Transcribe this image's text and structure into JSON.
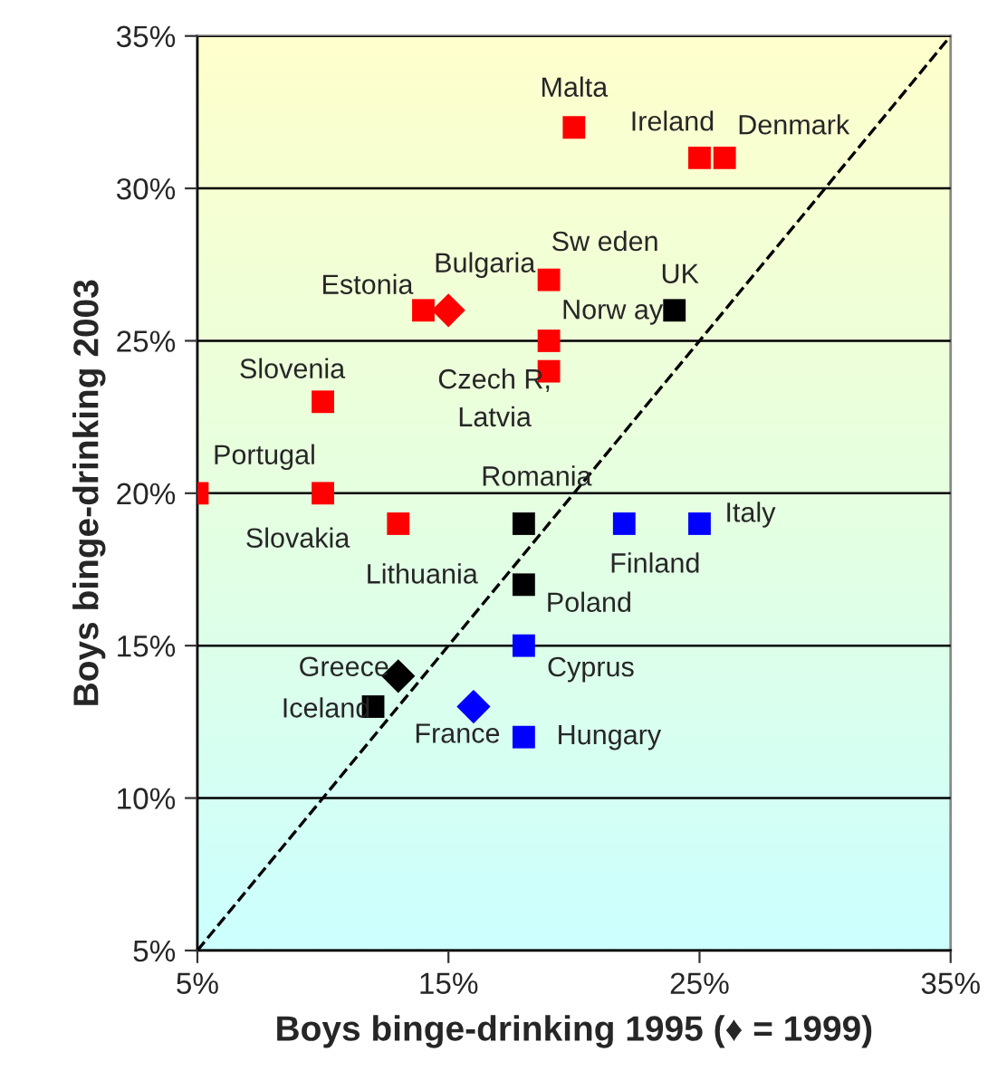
{
  "chart_data": {
    "type": "scatter",
    "xlabel": "Boys binge-drinking 1995 (♦ = 1999)",
    "ylabel": "Boys binge-drinking 2003",
    "xlim": [
      5,
      35
    ],
    "ylim": [
      5,
      35
    ],
    "xticks": [
      {
        "value": 5,
        "label": "5%"
      },
      {
        "value": 15,
        "label": "15%"
      },
      {
        "value": 25,
        "label": "25%"
      },
      {
        "value": 35,
        "label": "35%"
      }
    ],
    "yticks": [
      {
        "value": 5,
        "label": "5%"
      },
      {
        "value": 10,
        "label": "10%"
      },
      {
        "value": 15,
        "label": "15%"
      },
      {
        "value": 20,
        "label": "20%"
      },
      {
        "value": 25,
        "label": "25%"
      },
      {
        "value": 30,
        "label": "30%"
      },
      {
        "value": 35,
        "label": "35%"
      }
    ],
    "grid": "y",
    "series": [
      {
        "color": "#ff0000",
        "marker": "square",
        "x": [
          20,
          25,
          26,
          19,
          14,
          19,
          19,
          10,
          5,
          10,
          13
        ],
        "values": [
          32,
          31,
          31,
          27,
          26,
          25,
          24,
          23,
          20,
          20,
          19
        ]
      },
      {
        "color": "#ff0000",
        "marker": "diamond",
        "x": [
          15
        ],
        "values": [
          26
        ]
      },
      {
        "color": "#000000",
        "marker": "square",
        "x": [
          24,
          18,
          18,
          12
        ],
        "values": [
          26,
          19,
          17,
          13
        ]
      },
      {
        "color": "#000000",
        "marker": "diamond",
        "x": [
          13
        ],
        "values": [
          14
        ]
      },
      {
        "color": "#0000ff",
        "marker": "square",
        "x": [
          22,
          25,
          18,
          18
        ],
        "values": [
          19,
          19,
          15,
          12
        ]
      },
      {
        "color": "#0000ff",
        "marker": "diamond",
        "x": [
          16
        ],
        "values": [
          13
        ]
      },
      {
        "type": "line",
        "color": "#000000",
        "line_style": "dashed",
        "marker": "none",
        "x": [
          5,
          35
        ],
        "values": [
          5,
          35
        ]
      }
    ],
    "annotations": [
      {
        "text": "Malta",
        "x": 20,
        "y": 32
      },
      {
        "text": "Ireland",
        "x": 25,
        "y": 31
      },
      {
        "text": "Denmark",
        "x": 26,
        "y": 31
      },
      {
        "text": "Sw eden",
        "x": 19,
        "y": 27
      },
      {
        "text": "UK",
        "x": 24,
        "y": 26
      },
      {
        "text": "Estonia",
        "x": 14,
        "y": 26
      },
      {
        "text": "Bulgaria",
        "x": 15,
        "y": 26
      },
      {
        "text": "Norw ay",
        "x": 19,
        "y": 25
      },
      {
        "text": "Czech R,\nLatvia",
        "x": 19,
        "y": 24
      },
      {
        "text": "Slovenia",
        "x": 10,
        "y": 23
      },
      {
        "text": "Portugal",
        "x": 5,
        "y": 20
      },
      {
        "text": "Slovakia",
        "x": 10,
        "y": 20
      },
      {
        "text": "Lithuania",
        "x": 13,
        "y": 19
      },
      {
        "text": "Romania",
        "x": 18,
        "y": 19
      },
      {
        "text": "Finland",
        "x": 22,
        "y": 19
      },
      {
        "text": "Italy",
        "x": 25,
        "y": 19
      },
      {
        "text": "Poland",
        "x": 18,
        "y": 17
      },
      {
        "text": "Cyprus",
        "x": 18,
        "y": 15
      },
      {
        "text": "Greece",
        "x": 13,
        "y": 14
      },
      {
        "text": "Iceland",
        "x": 12,
        "y": 13
      },
      {
        "text": "France",
        "x": 16,
        "y": 13
      },
      {
        "text": "Hungary",
        "x": 18,
        "y": 12
      }
    ]
  }
}
